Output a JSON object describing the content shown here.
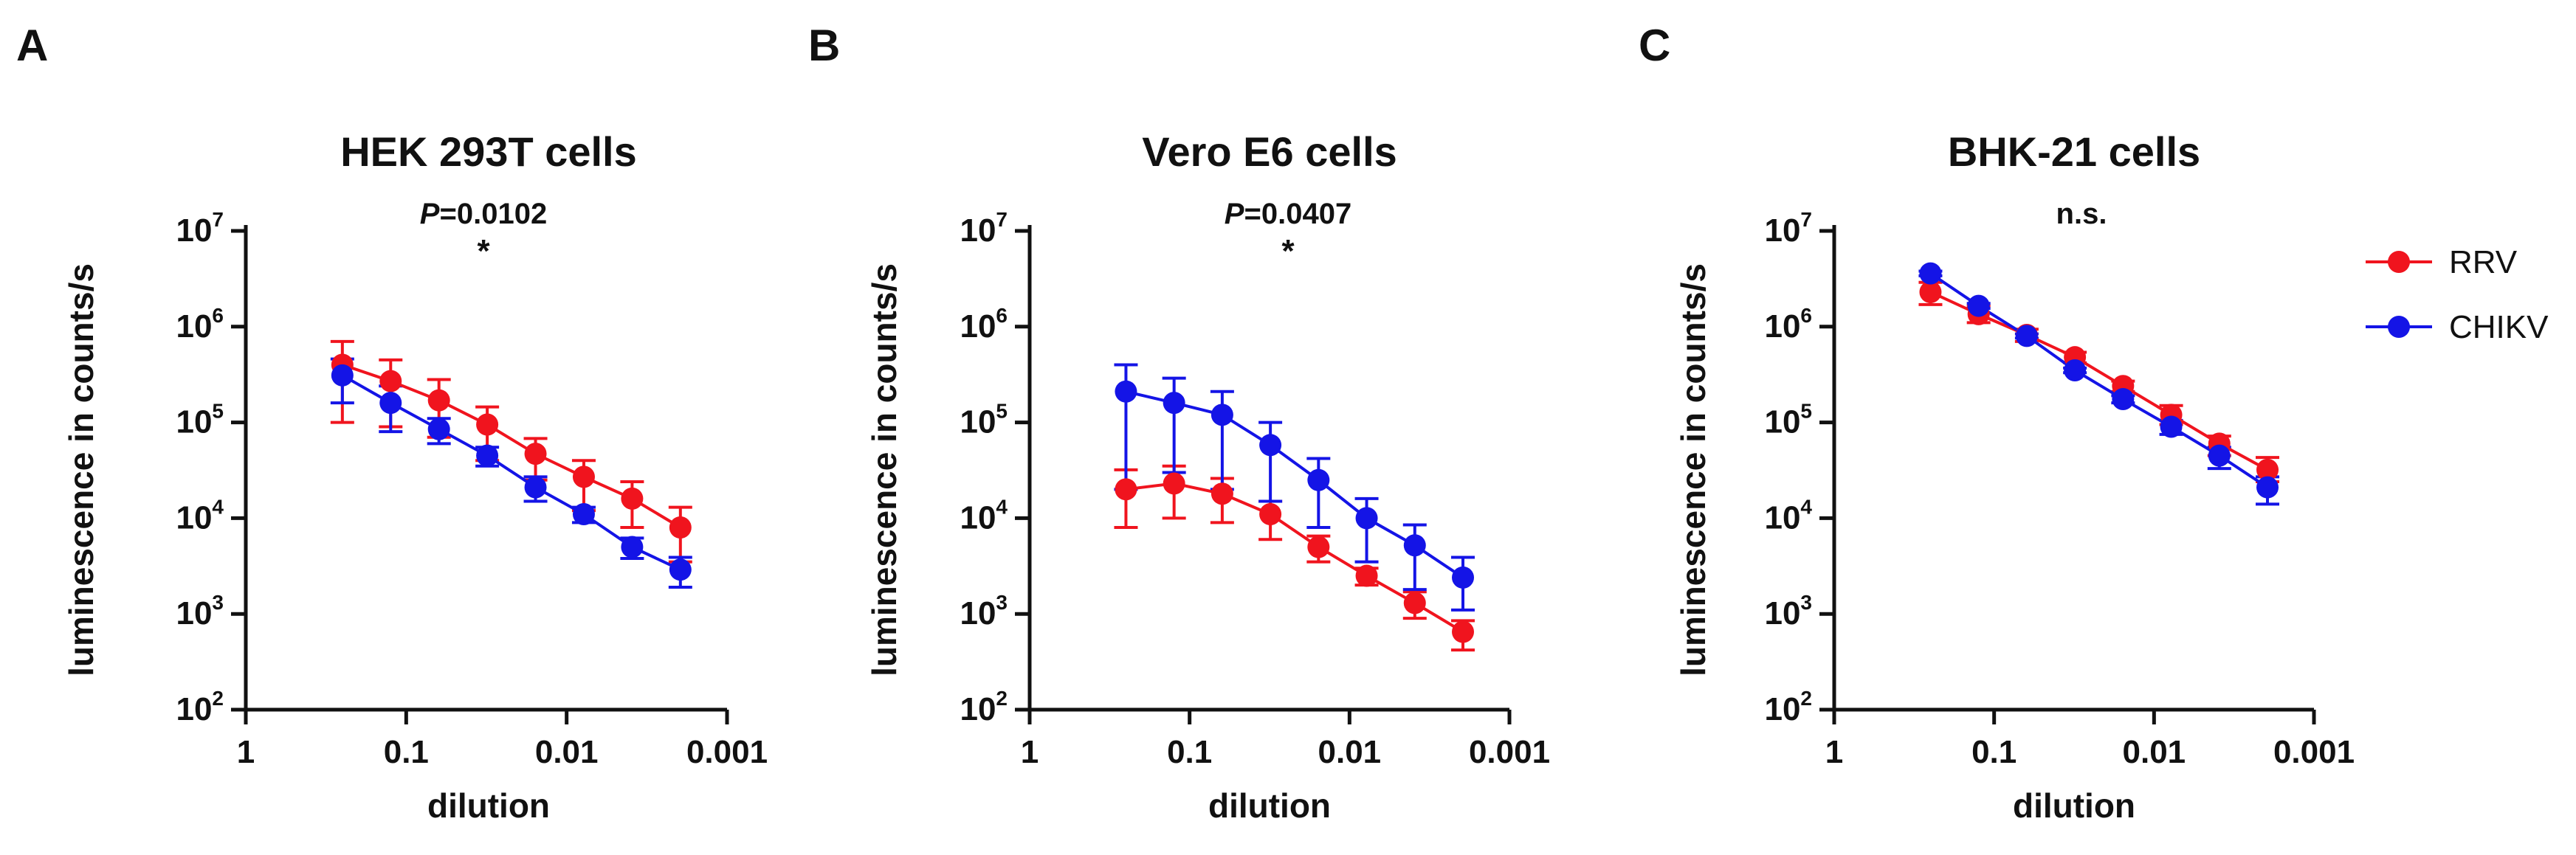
{
  "colors": {
    "RRV": "#f0141e",
    "CHIKV": "#1414e6",
    "axis": "#111111"
  },
  "legend": [
    {
      "name": "RRV",
      "color": "#f0141e"
    },
    {
      "name": "CHIKV",
      "color": "#1414e6"
    }
  ],
  "chart_data": [
    {
      "type": "scatter",
      "letter": "A",
      "title": "HEK 293T cells",
      "p_label": "P",
      "p_value": "=0.0102",
      "significance": "*",
      "xlabel": "dilution",
      "ylabel": "luminescence in counts/s",
      "x_scale": "log",
      "x_reversed": true,
      "xlim": [
        1,
        0.001
      ],
      "y_scale": "log",
      "ylim": [
        100,
        10000000
      ],
      "xtick_labels": [
        "1",
        "0.1",
        "0.01",
        "0.001"
      ],
      "ytick_labels": [
        {
          "base": "10",
          "exp": "2"
        },
        {
          "base": "10",
          "exp": "3"
        },
        {
          "base": "10",
          "exp": "4"
        },
        {
          "base": "10",
          "exp": "5"
        },
        {
          "base": "10",
          "exp": "6"
        },
        {
          "base": "10",
          "exp": "7"
        }
      ],
      "x": [
        0.25,
        0.125,
        0.0625,
        0.03125,
        0.015625,
        0.0078125,
        0.00390625,
        0.001953125
      ],
      "series": [
        {
          "name": "RRV",
          "values": [
            400000,
            270000,
            170000,
            95000,
            47000,
            27000,
            16000,
            8000
          ],
          "err_low": [
            100000,
            90000,
            70000,
            40000,
            25000,
            12000,
            8000,
            3500
          ],
          "err_high": [
            700000,
            450000,
            280000,
            145000,
            68000,
            40000,
            24000,
            13000
          ]
        },
        {
          "name": "CHIKV",
          "values": [
            310000,
            160000,
            85000,
            45000,
            21000,
            11000,
            5000,
            2900
          ],
          "err_low": [
            160000,
            80000,
            60000,
            35000,
            15000,
            9000,
            3800,
            1900
          ],
          "err_high": [
            460000,
            240000,
            110000,
            55000,
            27000,
            13000,
            6200,
            3900
          ]
        }
      ]
    },
    {
      "type": "scatter",
      "letter": "B",
      "title": "Vero E6 cells",
      "p_label": "P",
      "p_value": "=0.0407",
      "significance": "*",
      "xlabel": "dilution",
      "ylabel": "luminescence in counts/s",
      "x_scale": "log",
      "x_reversed": true,
      "xlim": [
        1,
        0.001
      ],
      "y_scale": "log",
      "ylim": [
        100,
        10000000
      ],
      "xtick_labels": [
        "1",
        "0.1",
        "0.01",
        "0.001"
      ],
      "ytick_labels": [
        {
          "base": "10",
          "exp": "2"
        },
        {
          "base": "10",
          "exp": "3"
        },
        {
          "base": "10",
          "exp": "4"
        },
        {
          "base": "10",
          "exp": "5"
        },
        {
          "base": "10",
          "exp": "6"
        },
        {
          "base": "10",
          "exp": "7"
        }
      ],
      "x": [
        0.25,
        0.125,
        0.0625,
        0.03125,
        0.015625,
        0.0078125,
        0.00390625,
        0.001953125
      ],
      "series": [
        {
          "name": "RRV",
          "values": [
            20000,
            23000,
            18000,
            11000,
            5000,
            2500,
            1300,
            650
          ],
          "err_low": [
            8000,
            10000,
            9000,
            6000,
            3500,
            2000,
            900,
            420
          ],
          "err_high": [
            32000,
            35000,
            26000,
            15000,
            6500,
            3000,
            1700,
            850
          ]
        },
        {
          "name": "CHIKV",
          "values": [
            210000,
            160000,
            120000,
            58000,
            25000,
            10000,
            5200,
            2400
          ],
          "err_low": [
            20000,
            30000,
            20000,
            15000,
            8000,
            3500,
            1800,
            1100
          ],
          "err_high": [
            400000,
            290000,
            210000,
            100000,
            42000,
            16000,
            8500,
            3900
          ]
        }
      ]
    },
    {
      "type": "scatter",
      "letter": "C",
      "title": "BHK-21 cells",
      "p_label": "",
      "p_value": "n.s.",
      "significance": "",
      "xlabel": "dilution",
      "ylabel": "luminescence in counts/s",
      "x_scale": "log",
      "x_reversed": true,
      "xlim": [
        1,
        0.001
      ],
      "y_scale": "log",
      "ylim": [
        100,
        10000000
      ],
      "xtick_labels": [
        "1",
        "0.1",
        "0.01",
        "0.001"
      ],
      "ytick_labels": [
        {
          "base": "10",
          "exp": "2"
        },
        {
          "base": "10",
          "exp": "3"
        },
        {
          "base": "10",
          "exp": "4"
        },
        {
          "base": "10",
          "exp": "5"
        },
        {
          "base": "10",
          "exp": "6"
        },
        {
          "base": "10",
          "exp": "7"
        }
      ],
      "x": [
        0.25,
        0.125,
        0.0625,
        0.03125,
        0.015625,
        0.0078125,
        0.00390625,
        0.001953125
      ],
      "series": [
        {
          "name": "RRV",
          "values": [
            2300000,
            1350000,
            820000,
            480000,
            240000,
            120000,
            60000,
            32000
          ],
          "err_low": [
            1700000,
            1100000,
            700000,
            420000,
            210000,
            95000,
            45000,
            24000
          ],
          "err_high": [
            2900000,
            1650000,
            940000,
            540000,
            270000,
            150000,
            72000,
            43000
          ]
        },
        {
          "name": "CHIKV",
          "values": [
            3600000,
            1650000,
            800000,
            350000,
            175000,
            90000,
            45000,
            21000
          ],
          "err_low": [
            3400000,
            1550000,
            760000,
            330000,
            160000,
            75000,
            33000,
            14000
          ],
          "err_high": [
            3800000,
            1750000,
            840000,
            370000,
            190000,
            105000,
            55000,
            27000
          ]
        }
      ]
    }
  ]
}
